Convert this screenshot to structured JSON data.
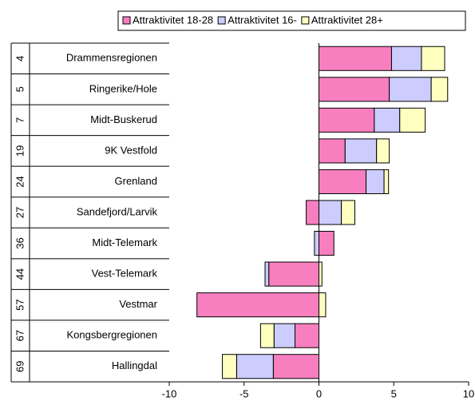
{
  "chart_data": {
    "type": "bar",
    "orientation": "horizontal",
    "stacked": true,
    "categories": [
      "Drammensregionen",
      "Ringerike/Hole",
      "Midt-Buskerud",
      "9K Vestfold",
      "Grenland",
      "Sandefjord/Larvik",
      "Midt-Telemark",
      "Vest-Telemark",
      "Vestmar",
      "Kongsbergregionen",
      "Hallingdal"
    ],
    "ranks": [
      4,
      5,
      7,
      19,
      24,
      27,
      36,
      44,
      57,
      67,
      69
    ],
    "series": [
      {
        "name": "Attraktivitet 18-28",
        "color": "#f77fc0",
        "values": [
          4.85,
          4.7,
          3.7,
          1.75,
          3.15,
          -0.85,
          1.0,
          -3.35,
          -8.15,
          -1.6,
          -3.05
        ]
      },
      {
        "name": "Attraktivitet 16-",
        "color": "#ccccff",
        "values": [
          2.0,
          2.8,
          1.7,
          2.1,
          1.2,
          1.5,
          -0.3,
          -0.25,
          0,
          -1.4,
          -2.45
        ]
      },
      {
        "name": "Attraktivitet 28+",
        "color": "#ffffc0",
        "values": [
          1.55,
          1.1,
          1.7,
          0.85,
          0.3,
          0.9,
          0,
          0.2,
          0.45,
          -0.9,
          -0.95
        ]
      }
    ],
    "xlim": [
      -10,
      10
    ],
    "xticks": [
      -10,
      -5,
      0,
      5,
      10
    ],
    "legend": "top"
  }
}
